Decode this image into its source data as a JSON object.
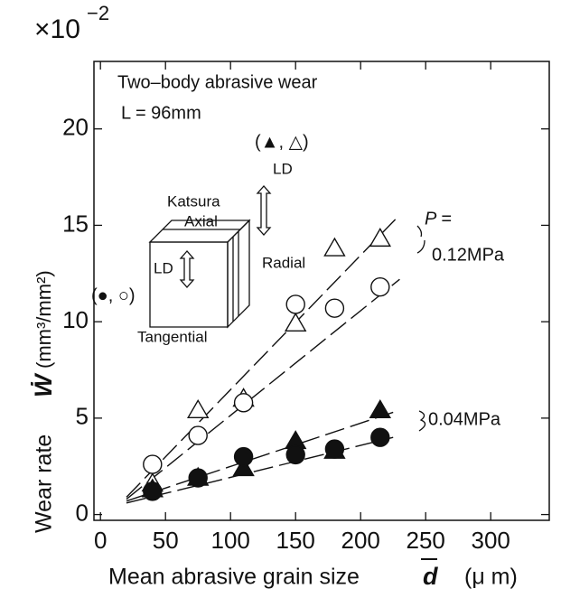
{
  "chart_data": {
    "type": "scatter",
    "scale_label": "×10",
    "scale_exponent": "−2",
    "x_label": "Mean abrasive grain size",
    "x_label_symbol": "d",
    "x_label_unit": "(μ m)",
    "y_label": "Wear rate",
    "y_label_symbol": "Ẇ",
    "y_label_unit": "(mm³/mm²)",
    "annotations": [
      "Two–body abrasive wear",
      "L = 96mm",
      "P =",
      "0.12MPa",
      "0.04MPa",
      "Katsura",
      "Axial",
      "Radial",
      "Tangential",
      "LD",
      "LD",
      "(▲, △)",
      "(●, ○)"
    ],
    "xlim": [
      -5,
      345
    ],
    "ylim": [
      -0.3,
      23.5
    ],
    "xticks": [
      0,
      50,
      100,
      150,
      200,
      250,
      300
    ],
    "yticks": [
      0,
      5,
      10,
      15,
      20
    ],
    "color": "#111111",
    "series": [
      {
        "marker": "triangle",
        "filled": false,
        "x": [
          40,
          75,
          110,
          150,
          180,
          215
        ],
        "values": [
          1.6,
          5.4,
          6.0,
          9.9,
          13.8,
          14.3
        ]
      },
      {
        "marker": "circle",
        "filled": false,
        "x": [
          40,
          75,
          110,
          150,
          180,
          215
        ],
        "values": [
          2.6,
          4.1,
          5.8,
          10.9,
          10.7,
          11.8
        ]
      },
      {
        "marker": "triangle",
        "filled": true,
        "x": [
          40,
          75,
          110,
          150,
          180,
          215
        ],
        "values": [
          1.3,
          1.9,
          2.4,
          3.8,
          3.3,
          5.4
        ]
      },
      {
        "marker": "circle",
        "filled": true,
        "x": [
          40,
          75,
          110,
          150,
          180,
          215
        ],
        "values": [
          1.2,
          1.9,
          3.0,
          3.1,
          3.4,
          4.0
        ]
      }
    ],
    "fits": [
      {
        "x": [
          20,
          228
        ],
        "values": [
          0.9,
          15.4
        ]
      },
      {
        "x": [
          20,
          230
        ],
        "values": [
          0.8,
          12.2
        ]
      },
      {
        "x": [
          20,
          225
        ],
        "values": [
          0.7,
          5.3
        ]
      },
      {
        "x": [
          20,
          225
        ],
        "values": [
          0.6,
          4.0
        ]
      }
    ]
  }
}
